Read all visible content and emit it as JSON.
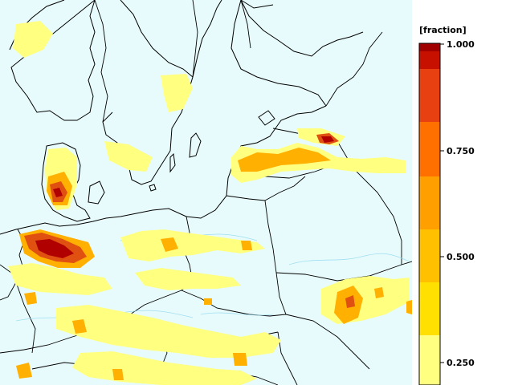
{
  "map": {
    "region": "Northern and Central Europe",
    "background_color": "#e8fbfc",
    "border_color": "#000000",
    "field_colors": [
      "#ffff80",
      "#ffe000",
      "#ffc000",
      "#ffa000",
      "#ff8000",
      "#ff6000",
      "#e84010",
      "#d02010",
      "#a00000"
    ]
  },
  "legend": {
    "unit": "[fraction]",
    "min": 0.2,
    "max": 1.0,
    "tick_labels": [
      {
        "value": 1.0,
        "label": "1.000"
      },
      {
        "value": 0.75,
        "label": "0.750"
      },
      {
        "value": 0.5,
        "label": "0.500"
      },
      {
        "value": 0.25,
        "label": "0.250"
      }
    ],
    "bins": [
      {
        "from": 0.2,
        "to": 0.25,
        "color": "#ffff80"
      },
      {
        "from": 0.25,
        "to": 0.375,
        "color": "#ffff80"
      },
      {
        "from": 0.375,
        "to": 0.5,
        "color": "#ffe000"
      },
      {
        "from": 0.5,
        "to": 0.625,
        "color": "#ffc000"
      },
      {
        "from": 0.625,
        "to": 0.75,
        "color": "#ffa000"
      },
      {
        "from": 0.75,
        "to": 0.875,
        "color": "#ff7000"
      },
      {
        "from": 0.875,
        "to": 0.95,
        "color": "#e84010"
      },
      {
        "from": 0.95,
        "to": 1.0,
        "color": "#c81000"
      }
    ]
  }
}
